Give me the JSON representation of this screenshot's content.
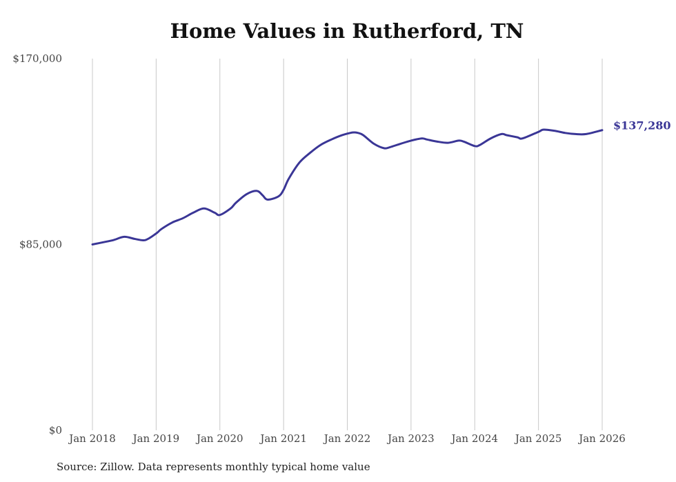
{
  "chart_data": {
    "type": "line",
    "title": "Home Values in Rutherford, TN",
    "xlabel": "",
    "ylabel": "",
    "ylim": [
      0,
      170000
    ],
    "yticks": [
      {
        "value": 0,
        "label": "$0"
      },
      {
        "value": 85000,
        "label": "$85,000"
      },
      {
        "value": 170000,
        "label": "$170,000"
      }
    ],
    "xticks": [
      {
        "value": 2018,
        "label": "Jan 2018"
      },
      {
        "value": 2019,
        "label": "Jan 2019"
      },
      {
        "value": 2020,
        "label": "Jan 2020"
      },
      {
        "value": 2021,
        "label": "Jan 2021"
      },
      {
        "value": 2022,
        "label": "Jan 2022"
      },
      {
        "value": 2023,
        "label": "Jan 2023"
      },
      {
        "value": 2024,
        "label": "Jan 2024"
      },
      {
        "value": 2025,
        "label": "Jan 2025"
      },
      {
        "value": 2026,
        "label": "Jan 2026"
      }
    ],
    "grid": "vertical",
    "series": [
      {
        "name": "Typical home value",
        "color": "#3a3696",
        "end_label": "$137,280",
        "x": [
          2018.0,
          2018.17,
          2018.33,
          2018.5,
          2018.67,
          2018.83,
          2019.0,
          2019.08,
          2019.25,
          2019.42,
          2019.58,
          2019.75,
          2019.92,
          2020.0,
          2020.17,
          2020.25,
          2020.42,
          2020.58,
          2020.67,
          2020.75,
          2020.92,
          2021.0,
          2021.08,
          2021.25,
          2021.42,
          2021.58,
          2021.75,
          2021.92,
          2022.08,
          2022.17,
          2022.25,
          2022.42,
          2022.58,
          2022.67,
          2022.83,
          2023.0,
          2023.17,
          2023.25,
          2023.42,
          2023.58,
          2023.75,
          2023.83,
          2024.0,
          2024.08,
          2024.25,
          2024.42,
          2024.5,
          2024.67,
          2024.75,
          2025.0,
          2025.08,
          2025.25,
          2025.42,
          2025.58,
          2025.75,
          2026.0
        ],
        "values": [
          85000,
          86000,
          87000,
          88500,
          87500,
          87000,
          90000,
          92000,
          95000,
          97000,
          99500,
          101500,
          99500,
          98500,
          101500,
          104000,
          108000,
          109500,
          107500,
          105500,
          107000,
          110000,
          115000,
          122500,
          127000,
          130500,
          133000,
          135000,
          136200,
          136000,
          135000,
          131000,
          129000,
          129500,
          131000,
          132500,
          133500,
          133000,
          132000,
          131500,
          132500,
          132000,
          130000,
          130500,
          133500,
          135500,
          135000,
          134000,
          133500,
          136500,
          137500,
          137000,
          136000,
          135500,
          135500,
          137280
        ]
      }
    ]
  },
  "source": "Source: Zillow. Data represents monthly typical home value"
}
